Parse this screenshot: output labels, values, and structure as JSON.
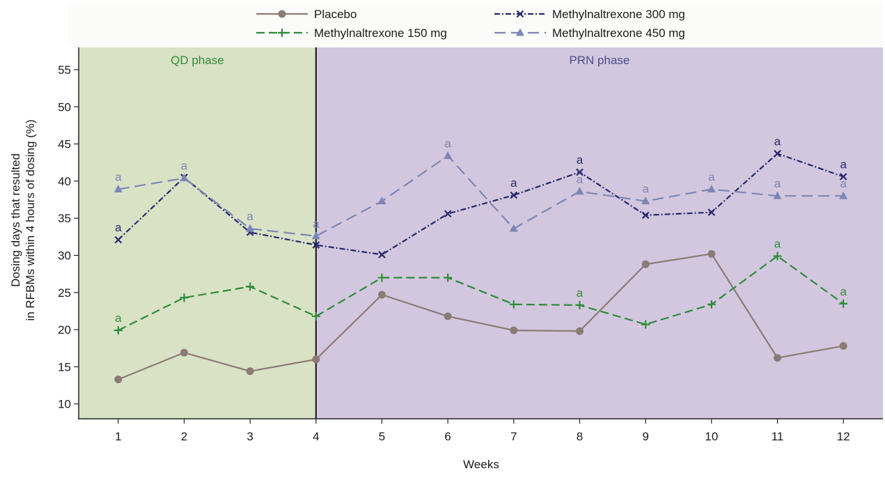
{
  "chart_data": {
    "type": "line",
    "xlabel": "Weeks",
    "ylabel_lines": [
      "Dosing days that resulted",
      "in RFBMs within 4 hours of dosing (%)"
    ],
    "x": [
      1,
      2,
      3,
      4,
      5,
      6,
      7,
      8,
      9,
      10,
      11,
      12
    ],
    "xlim": [
      0.4,
      12.6
    ],
    "ylim": [
      8,
      58
    ],
    "yticks": [
      10,
      15,
      20,
      25,
      30,
      35,
      40,
      45,
      50,
      55
    ],
    "legend_placement": "top",
    "phase_divider_x": 4,
    "phases": [
      {
        "label": "QD phase",
        "from": 0.4,
        "to": 4,
        "fill": "#d9e2c5",
        "text_color": "#2e8b3a"
      },
      {
        "label": "PRN phase",
        "from": 4,
        "to": 12.6,
        "fill": "#d2c7de",
        "text_color": "#4a4f8c"
      }
    ],
    "significance_marker": "a",
    "series": [
      {
        "name": "Placebo",
        "color": "#8c7a76",
        "dash": "none",
        "marker": "circle",
        "values": [
          13.3,
          16.9,
          14.4,
          16.0,
          24.7,
          21.8,
          19.9,
          19.8,
          28.8,
          30.2,
          16.2,
          17.8
        ],
        "sig": [
          false,
          false,
          false,
          false,
          false,
          false,
          false,
          false,
          false,
          false,
          false,
          false
        ]
      },
      {
        "name": "Methylnaltrexone 150 mg",
        "color": "#2e8b3a",
        "dash": "12,6",
        "marker": "plus",
        "values": [
          19.9,
          24.3,
          25.8,
          21.8,
          27.0,
          27.0,
          23.4,
          23.3,
          20.7,
          23.4,
          29.9,
          23.5
        ],
        "sig": [
          true,
          false,
          false,
          false,
          false,
          false,
          false,
          true,
          false,
          false,
          true,
          true
        ]
      },
      {
        "name": "Methylnaltrexone 300 mg",
        "color": "#25286b",
        "dash": "8,3,2,3",
        "marker": "cross",
        "values": [
          32.1,
          40.5,
          33.1,
          31.4,
          30.1,
          35.6,
          38.1,
          41.2,
          35.4,
          35.8,
          43.7,
          40.6
        ],
        "sig": [
          true,
          false,
          false,
          false,
          false,
          false,
          true,
          true,
          false,
          false,
          true,
          true
        ]
      },
      {
        "name": "Methylnaltrexone 450 mg",
        "color": "#7c86b6",
        "dash": "16,8",
        "marker": "triangle",
        "values": [
          38.9,
          40.4,
          33.6,
          32.6,
          37.3,
          43.4,
          33.6,
          38.6,
          37.3,
          38.9,
          38.0,
          38.0
        ],
        "sig": [
          true,
          true,
          true,
          true,
          false,
          true,
          false,
          true,
          true,
          true,
          true,
          true
        ]
      }
    ]
  }
}
